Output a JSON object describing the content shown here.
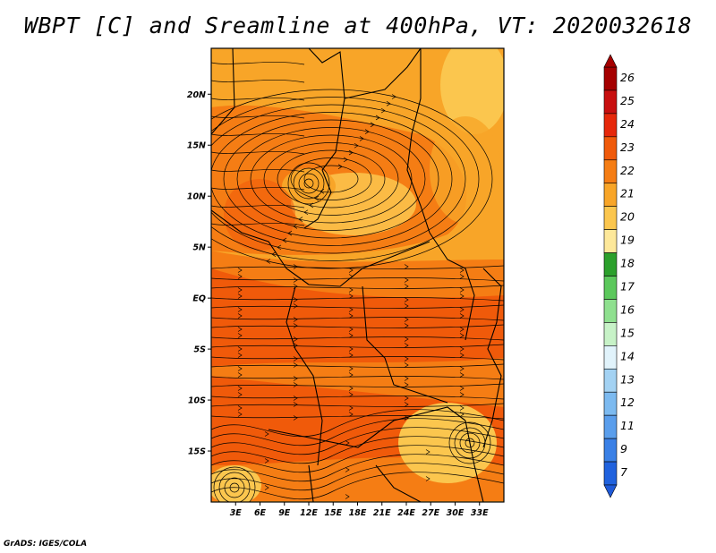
{
  "title": "WBPT [C] and Sreamline at 400hPa, VT: 2020032618",
  "footer": "GrADS: IGES/COLA",
  "map": {
    "lon_range": [
      0,
      36
    ],
    "lat_range": [
      -20,
      24.5
    ],
    "lon_ticks": [
      "3E",
      "6E",
      "9E",
      "12E",
      "15E",
      "18E",
      "21E",
      "24E",
      "27E",
      "30E",
      "33E"
    ],
    "lat_ticks": [
      "20N",
      "15N",
      "10N",
      "5N",
      "EQ",
      "5S",
      "10S",
      "15S"
    ]
  },
  "colorbar": {
    "labels": [
      "26",
      "25",
      "24",
      "23",
      "22",
      "21",
      "20",
      "19",
      "18",
      "17",
      "16",
      "15",
      "14",
      "13",
      "12",
      "11",
      "9",
      "7"
    ],
    "colors": [
      "#a50000",
      "#c80f0f",
      "#e6280a",
      "#f05a0a",
      "#f57d14",
      "#f8a528",
      "#fbc64e",
      "#fde89a",
      "#2ca02c",
      "#5cc85c",
      "#8fe08f",
      "#c7f2c7",
      "#e1f3fb",
      "#a3d2f3",
      "#7cbaf0",
      "#5a9eec",
      "#3a80e6",
      "#2062de"
    ]
  }
}
